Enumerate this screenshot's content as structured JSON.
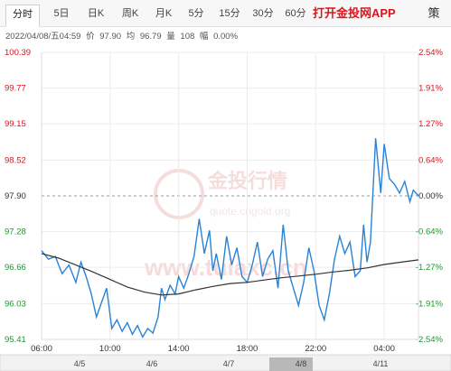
{
  "tabs": [
    {
      "label": "分时",
      "active": true
    },
    {
      "label": "5日",
      "active": false
    },
    {
      "label": "日K",
      "active": false
    },
    {
      "label": "周K",
      "active": false
    },
    {
      "label": "月K",
      "active": false
    },
    {
      "label": "5分",
      "active": false
    },
    {
      "label": "15分",
      "active": false
    },
    {
      "label": "30分",
      "active": false
    },
    {
      "label": "60分",
      "active": false
    }
  ],
  "app_link": "打开金投网APP",
  "settings_icon": "策",
  "info": {
    "datetime": "2022/04/08/五04:59",
    "price_label": "价",
    "price": "97.90",
    "avg_label": "均",
    "avg": "96.79",
    "volume_label": "量",
    "volume": "108",
    "change_label": "幅",
    "change": "0.00%"
  },
  "watermark": {
    "brand": "金投行情",
    "site": "quote.cngold.org",
    "url": "www.tuiaxc.cn"
  },
  "colors": {
    "price_line": "#2a82d6",
    "avg_line": "#333333",
    "up_text": "#e0121b",
    "down_text": "#179b2b",
    "neutral_text": "#333333",
    "grid": "#ececec"
  },
  "chart_data": {
    "type": "line",
    "base_price": 97.9,
    "y_ticks": [
      {
        "price": "100.39",
        "pct": "2.54%",
        "dir": "up"
      },
      {
        "price": "99.77",
        "pct": "1.91%",
        "dir": "up"
      },
      {
        "price": "99.15",
        "pct": "1.27%",
        "dir": "up"
      },
      {
        "price": "98.52",
        "pct": "0.64%",
        "dir": "up"
      },
      {
        "price": "97.90",
        "pct": "0.00%",
        "dir": "flat"
      },
      {
        "price": "97.28",
        "pct": "-0.64%",
        "dir": "down"
      },
      {
        "price": "96.66",
        "pct": "-1.27%",
        "dir": "down"
      },
      {
        "price": "96.03",
        "pct": "-1.91%",
        "dir": "down"
      },
      {
        "price": "95.41",
        "pct": "-2.54%",
        "dir": "down"
      }
    ],
    "ylim": [
      95.41,
      100.39
    ],
    "x_ticks": [
      "06:00",
      "10:00",
      "14:00",
      "18:00",
      "22:00",
      "04:00"
    ],
    "xlim": [
      6,
      28
    ],
    "series": [
      {
        "key": "price",
        "x": [
          6.0,
          6.4,
          6.8,
          7.2,
          7.6,
          8.0,
          8.3,
          8.6,
          8.9,
          9.2,
          9.5,
          9.8,
          10.1,
          10.4,
          10.7,
          11.0,
          11.3,
          11.6,
          11.9,
          12.2,
          12.5,
          12.8,
          13.0,
          13.2,
          13.5,
          13.8,
          14.0,
          14.3,
          14.6,
          14.9,
          15.2,
          15.5,
          15.8,
          16.0,
          16.2,
          16.5,
          16.8,
          17.1,
          17.4,
          17.7,
          18.0,
          18.3,
          18.6,
          18.9,
          19.2,
          19.5,
          19.8,
          20.1,
          20.4,
          20.7,
          21.0,
          21.3,
          21.6,
          21.9,
          22.2,
          22.5,
          22.8,
          23.1,
          23.4,
          23.7,
          24.0,
          24.3,
          24.6,
          24.8,
          25.0,
          25.2,
          25.5,
          25.8,
          26.0,
          26.3,
          26.6,
          26.9,
          27.2,
          27.5,
          27.7,
          28.0
        ],
        "y": [
          96.95,
          96.8,
          96.85,
          96.55,
          96.7,
          96.4,
          96.75,
          96.5,
          96.2,
          95.8,
          96.05,
          96.3,
          95.6,
          95.75,
          95.55,
          95.7,
          95.5,
          95.65,
          95.45,
          95.6,
          95.52,
          95.8,
          96.3,
          96.1,
          96.35,
          96.2,
          96.5,
          96.3,
          96.55,
          96.85,
          97.5,
          96.9,
          97.3,
          96.6,
          96.9,
          96.45,
          97.2,
          96.7,
          97.0,
          96.5,
          96.4,
          96.7,
          97.1,
          96.5,
          96.8,
          96.95,
          96.3,
          97.4,
          96.6,
          96.3,
          96.0,
          96.4,
          97.0,
          96.6,
          96.0,
          95.75,
          96.2,
          96.8,
          97.2,
          96.9,
          97.1,
          96.5,
          96.6,
          97.4,
          96.75,
          97.1,
          98.9,
          97.95,
          98.8,
          98.2,
          98.1,
          97.95,
          98.15,
          97.8,
          98.0,
          97.9
        ]
      },
      {
        "key": "avg",
        "x": [
          6,
          7,
          8,
          9,
          10,
          11,
          12,
          13,
          14,
          15,
          16,
          17,
          18,
          19,
          20,
          21,
          22,
          23,
          24,
          25,
          26,
          27,
          28
        ],
        "y": [
          96.9,
          96.82,
          96.7,
          96.58,
          96.45,
          96.32,
          96.23,
          96.18,
          96.2,
          96.27,
          96.33,
          96.38,
          96.4,
          96.44,
          96.48,
          96.51,
          96.54,
          96.58,
          96.61,
          96.65,
          96.71,
          96.75,
          96.79
        ]
      }
    ],
    "reference_line": 97.9
  },
  "navigator": {
    "dates": [
      "4/5",
      "4/6",
      "4/7",
      "4/8",
      "4/11"
    ]
  }
}
